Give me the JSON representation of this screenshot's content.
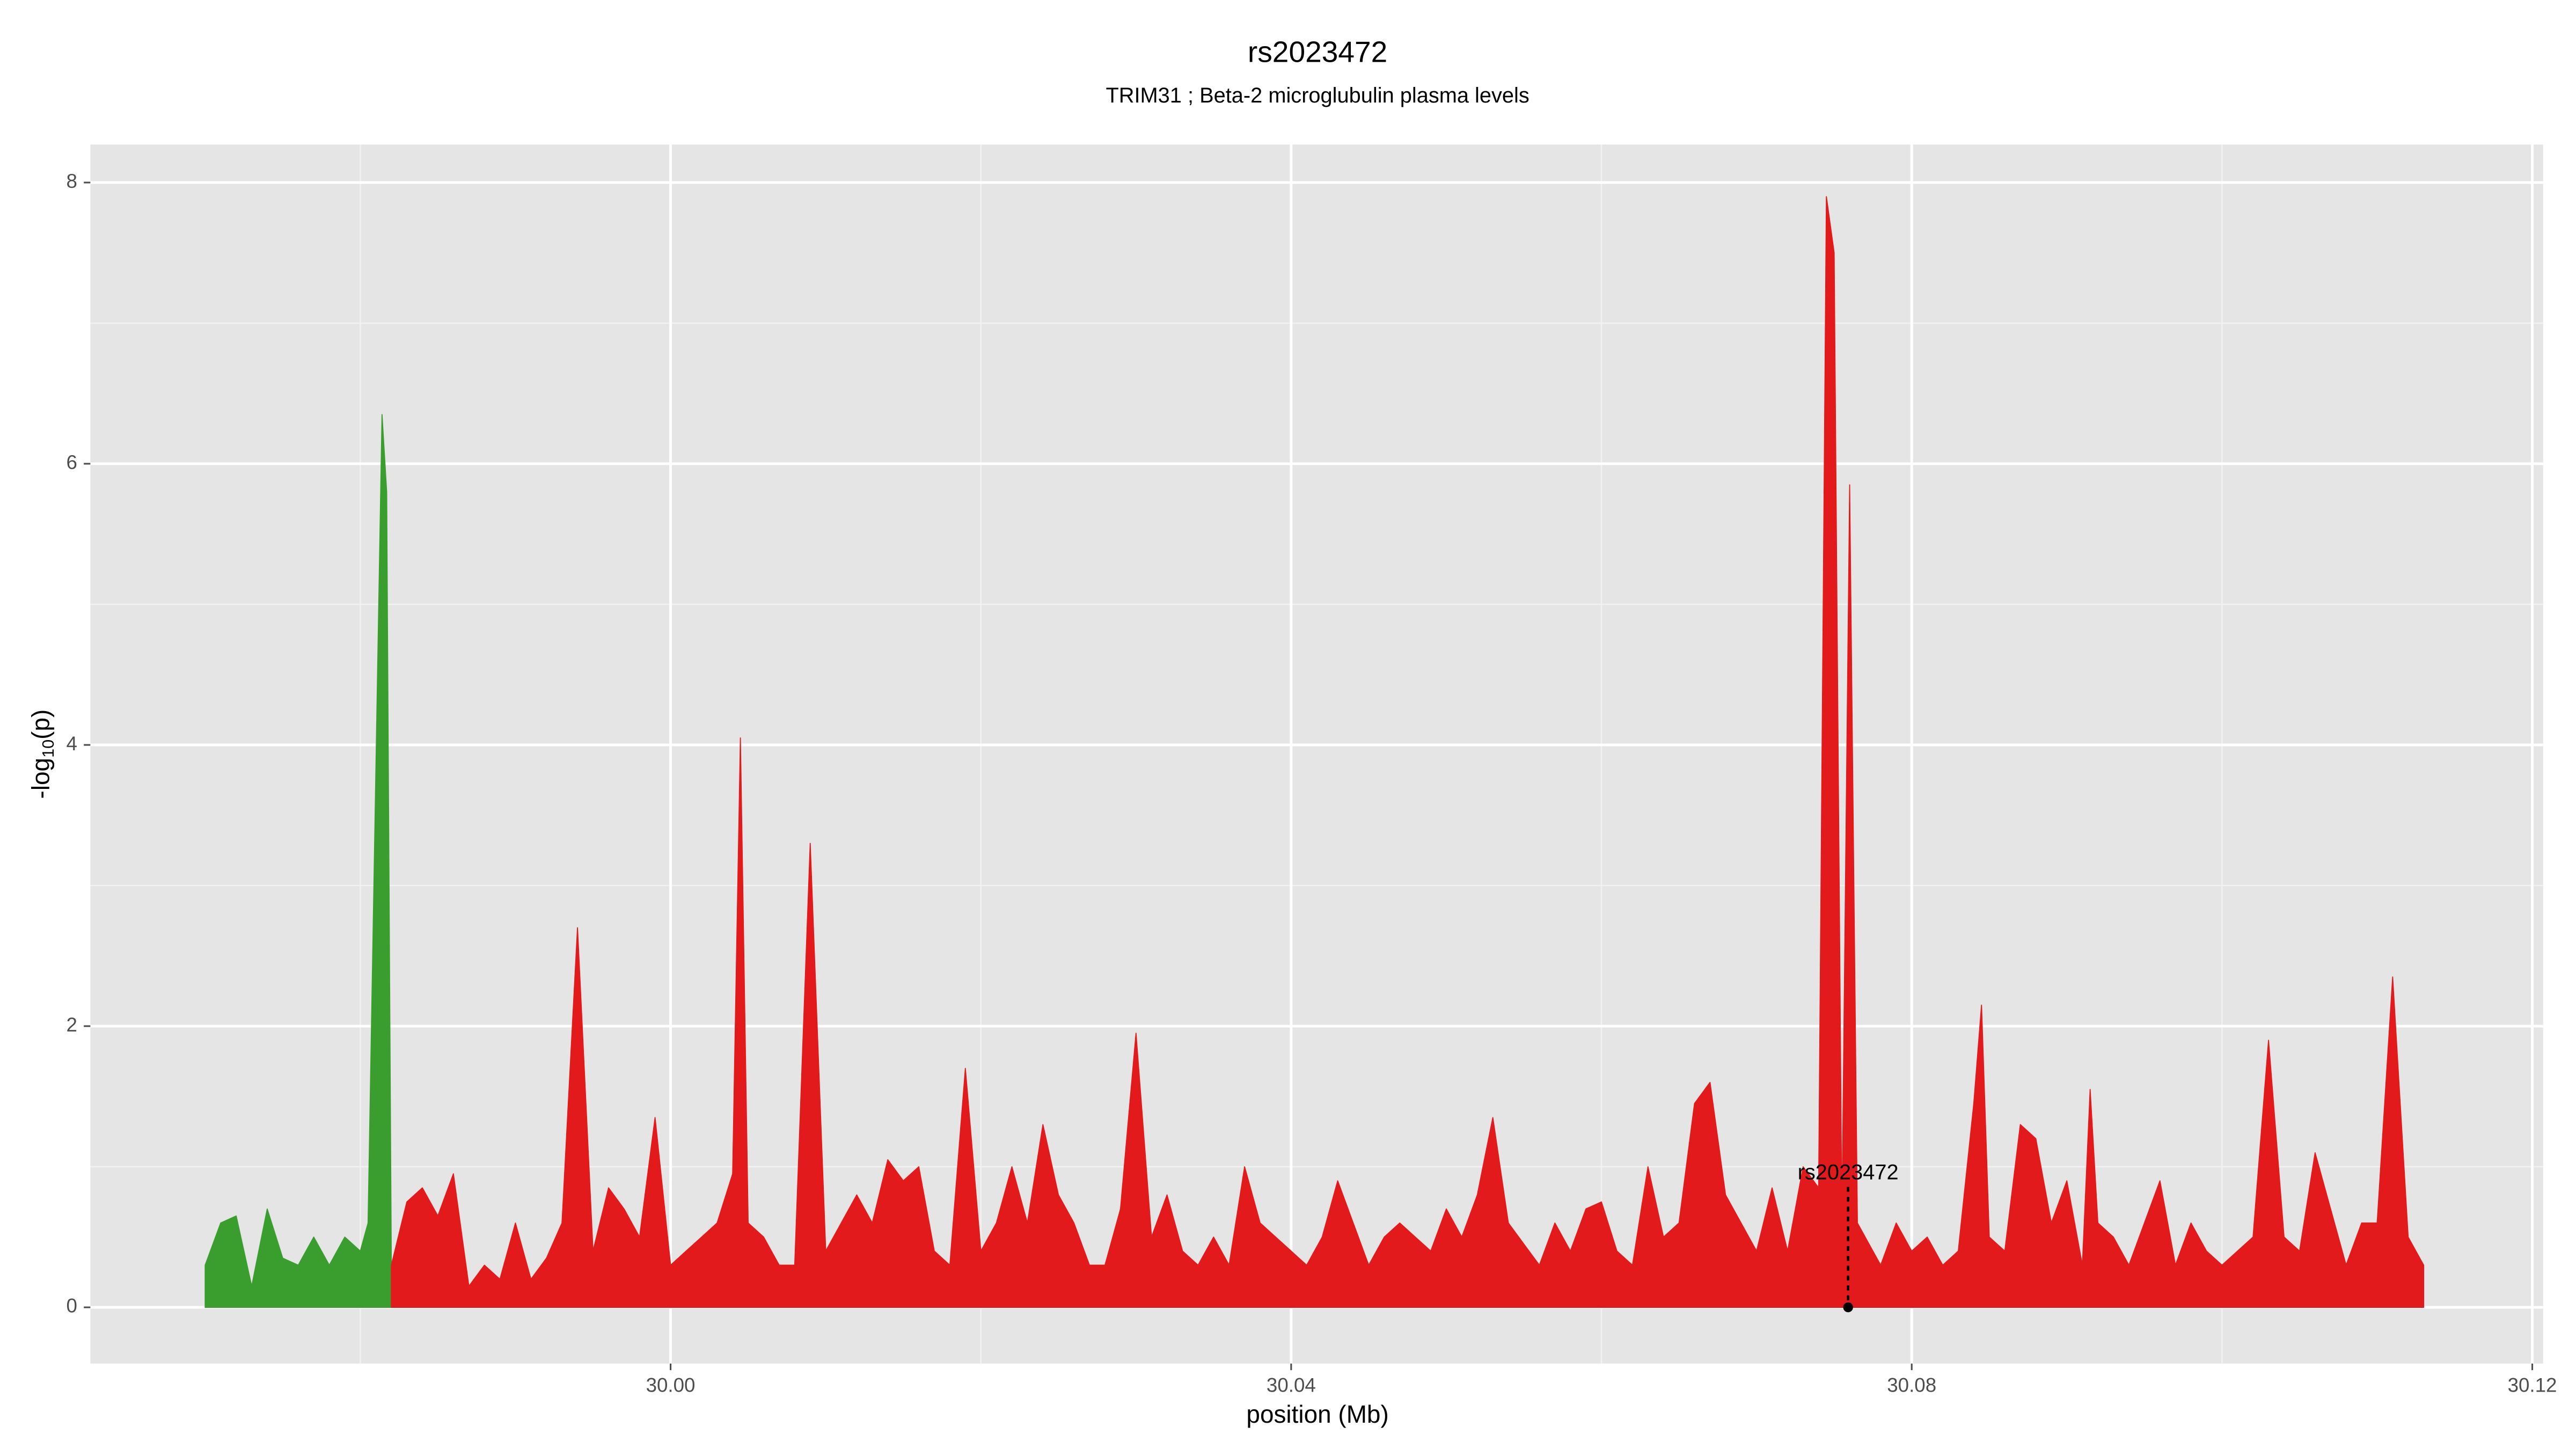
{
  "chart_data": {
    "type": "area",
    "title": "rs2023472",
    "subtitle": "TRIM31 ; Beta-2 microglubulin plasma levels",
    "x_label": "position (Mb)",
    "y_label": [
      "-log",
      "10",
      "(p)"
    ],
    "xlim": [
      29.9626,
      30.1207
    ],
    "ylim": [
      -0.4,
      8.27
    ],
    "xticks": [
      {
        "value": 30,
        "label": "30.00"
      },
      30.04,
      30.08,
      30.12
    ],
    "yticks": [
      0,
      2,
      4,
      6,
      8
    ],
    "x_minor_ticks": [
      29.98,
      30.02,
      30.06,
      30.1
    ],
    "y_minor_ticks": [
      1,
      3,
      5,
      7
    ],
    "grid": true,
    "series": [
      {
        "color": "#3a9e2f",
        "x": [
          29.97,
          29.971,
          29.972,
          29.973,
          29.974,
          29.975,
          29.976,
          29.977,
          29.978,
          29.979,
          29.98,
          29.9805,
          29.9814,
          29.9817,
          29.982
        ],
        "values": [
          0.3,
          0.6,
          0.65,
          0.15,
          0.7,
          0.35,
          0.3,
          0.5,
          0.3,
          0.5,
          0.4,
          0.6,
          6.35,
          5.8,
          0.3
        ]
      },
      {
        "color": "#e31a1c",
        "x": [
          29.982,
          29.983,
          29.984,
          29.985,
          29.986,
          29.987,
          29.988,
          29.989,
          29.99,
          29.991,
          29.992,
          29.993,
          29.994,
          29.995,
          29.996,
          29.997,
          29.998,
          29.999,
          30.0,
          30.001,
          30.002,
          30.003,
          30.004,
          30.0045,
          30.005,
          30.006,
          30.007,
          30.008,
          30.009,
          30.01,
          30.011,
          30.012,
          30.013,
          30.014,
          30.015,
          30.016,
          30.017,
          30.018,
          30.019,
          30.02,
          30.021,
          30.022,
          30.023,
          30.024,
          30.025,
          30.026,
          30.027,
          30.028,
          30.029,
          30.03,
          30.031,
          30.032,
          30.033,
          30.034,
          30.035,
          30.036,
          30.037,
          30.038,
          30.039,
          30.04,
          30.041,
          30.042,
          30.043,
          30.044,
          30.045,
          30.046,
          30.047,
          30.048,
          30.049,
          30.05,
          30.051,
          30.052,
          30.053,
          30.054,
          30.055,
          30.056,
          30.057,
          30.058,
          30.059,
          30.06,
          30.061,
          30.062,
          30.063,
          30.064,
          30.065,
          30.066,
          30.067,
          30.068,
          30.069,
          30.07,
          30.071,
          30.072,
          30.073,
          30.074,
          30.0745,
          30.075,
          30.0755,
          30.076,
          30.0765,
          30.077,
          30.078,
          30.079,
          30.08,
          30.081,
          30.082,
          30.083,
          30.084,
          30.0845,
          30.085,
          30.086,
          30.087,
          30.088,
          30.089,
          30.09,
          30.091,
          30.0915,
          30.092,
          30.093,
          30.094,
          30.095,
          30.096,
          30.097,
          30.098,
          30.099,
          30.1,
          30.101,
          30.102,
          30.103,
          30.104,
          30.105,
          30.106,
          30.107,
          30.108,
          30.109,
          30.11,
          30.111,
          30.112,
          30.113
        ],
        "values": [
          0.3,
          0.75,
          0.85,
          0.65,
          0.95,
          0.15,
          0.3,
          0.2,
          0.6,
          0.2,
          0.35,
          0.6,
          2.7,
          0.4,
          0.85,
          0.7,
          0.5,
          1.35,
          0.3,
          0.4,
          0.5,
          0.6,
          0.95,
          4.05,
          0.6,
          0.5,
          0.3,
          0.3,
          3.3,
          0.4,
          0.6,
          0.8,
          0.6,
          1.05,
          0.9,
          1.0,
          0.4,
          0.3,
          1.7,
          0.4,
          0.6,
          1.0,
          0.6,
          1.3,
          0.8,
          0.6,
          0.3,
          0.3,
          0.7,
          1.95,
          0.5,
          0.8,
          0.4,
          0.3,
          0.5,
          0.3,
          1.0,
          0.6,
          0.5,
          0.4,
          0.3,
          0.5,
          0.9,
          0.6,
          0.3,
          0.5,
          0.6,
          0.5,
          0.4,
          0.7,
          0.5,
          0.8,
          1.35,
          0.6,
          0.45,
          0.3,
          0.6,
          0.4,
          0.7,
          0.75,
          0.4,
          0.3,
          1.0,
          0.5,
          0.6,
          1.45,
          1.6,
          0.8,
          0.6,
          0.4,
          0.85,
          0.4,
          1.0,
          0.85,
          7.9,
          7.5,
          0.6,
          5.85,
          0.6,
          0.5,
          0.3,
          0.6,
          0.4,
          0.5,
          0.3,
          0.4,
          1.45,
          2.15,
          0.5,
          0.4,
          1.3,
          1.2,
          0.6,
          0.9,
          0.3,
          1.55,
          0.6,
          0.5,
          0.3,
          0.6,
          0.9,
          0.3,
          0.6,
          0.4,
          0.3,
          0.4,
          0.5,
          1.9,
          0.5,
          0.4,
          1.1,
          0.7,
          0.3,
          0.6,
          0.6,
          2.35,
          0.5,
          0.3
        ]
      }
    ],
    "annotation": {
      "text": "rs2023472",
      "x": 30.0759,
      "y": 0,
      "label_y": 0.95
    }
  }
}
